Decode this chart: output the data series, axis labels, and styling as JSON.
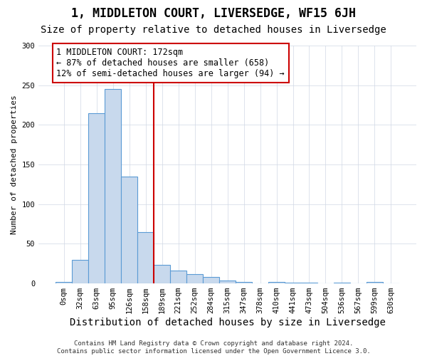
{
  "title": "1, MIDDLETON COURT, LIVERSEDGE, WF15 6JH",
  "subtitle": "Size of property relative to detached houses in Liversedge",
  "xlabel": "Distribution of detached houses by size in Liversedge",
  "ylabel": "Number of detached properties",
  "bin_labels": [
    "0sqm",
    "32sqm",
    "63sqm",
    "95sqm",
    "126sqm",
    "158sqm",
    "189sqm",
    "221sqm",
    "252sqm",
    "284sqm",
    "315sqm",
    "347sqm",
    "378sqm",
    "410sqm",
    "441sqm",
    "473sqm",
    "504sqm",
    "536sqm",
    "567sqm",
    "599sqm",
    "630sqm"
  ],
  "bar_values": [
    2,
    30,
    215,
    245,
    135,
    65,
    23,
    16,
    12,
    8,
    4,
    2,
    0,
    2,
    1,
    1,
    0,
    1,
    0,
    2,
    0
  ],
  "bar_color": "#c8d9ed",
  "bar_edge_color": "#5b9bd5",
  "vline_x": 5.5,
  "vline_color": "#cc0000",
  "annotation_text": "1 MIDDLETON COURT: 172sqm\n← 87% of detached houses are smaller (658)\n12% of semi-detached houses are larger (94) →",
  "annotation_box_color": "#cc0000",
  "ylim": [
    0,
    300
  ],
  "yticks": [
    0,
    50,
    100,
    150,
    200,
    250,
    300
  ],
  "footer": "Contains HM Land Registry data © Crown copyright and database right 2024.\nContains public sector information licensed under the Open Government Licence 3.0.",
  "title_fontsize": 12,
  "subtitle_fontsize": 10,
  "xlabel_fontsize": 10,
  "ylabel_fontsize": 8,
  "tick_fontsize": 7.5,
  "annotation_fontsize": 8.5,
  "footer_fontsize": 6.5
}
